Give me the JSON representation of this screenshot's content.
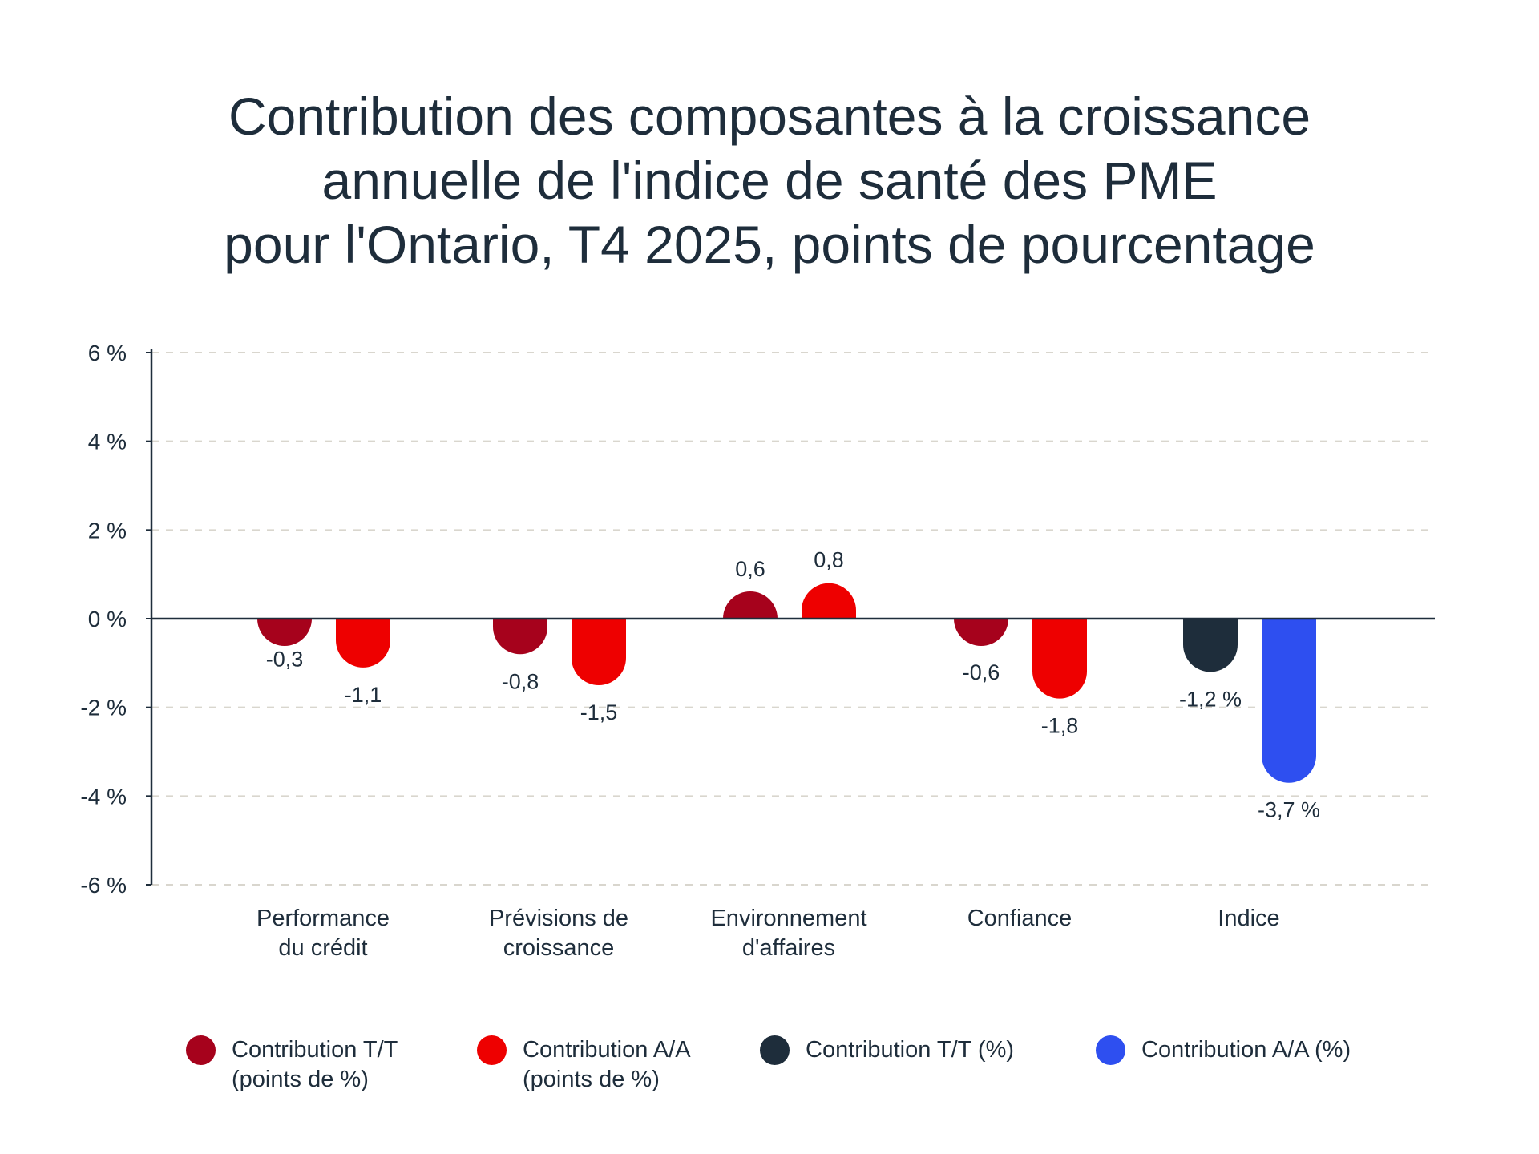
{
  "chart_data": {
    "type": "bar",
    "title_lines": [
      "Contribution des composantes à la croissance",
      "annuelle de l'indice de santé des PME",
      "pour l'Ontario, T4 2025, points de pourcentage"
    ],
    "y_ticks": [
      "6 %",
      "4 %",
      "2 %",
      "0 %",
      "-2 %",
      "-4 %",
      "-6 %"
    ],
    "y_tick_values": [
      6,
      4,
      2,
      0,
      -2,
      -4,
      -6
    ],
    "ylim": [
      -6,
      6
    ],
    "grid": "dashed horizontal",
    "legend_position": "bottom",
    "categories": [
      [
        "Performance",
        "du crédit"
      ],
      [
        "Prévisions de",
        "croissance"
      ],
      [
        "Environnement",
        "d'affaires"
      ],
      [
        "Confiance"
      ],
      [
        "Indice"
      ]
    ],
    "bars": [
      {
        "category": 0,
        "slot": 0,
        "value": -0.3,
        "label": "-0,3",
        "color": "#a6021c"
      },
      {
        "category": 0,
        "slot": 1,
        "value": -1.1,
        "label": "-1,1",
        "color": "#ee0000"
      },
      {
        "category": 1,
        "slot": 0,
        "value": -0.8,
        "label": "-0,8",
        "color": "#a6021c"
      },
      {
        "category": 1,
        "slot": 1,
        "value": -1.5,
        "label": "-1,5",
        "color": "#ee0000"
      },
      {
        "category": 2,
        "slot": 0,
        "value": 0.6,
        "label": "0,6",
        "color": "#a6021c"
      },
      {
        "category": 2,
        "slot": 1,
        "value": 0.8,
        "label": "0,8",
        "color": "#ee0000"
      },
      {
        "category": 3,
        "slot": 0,
        "value": -0.6,
        "label": "-0,6",
        "color": "#a6021c"
      },
      {
        "category": 3,
        "slot": 1,
        "value": -1.8,
        "label": "-1,8",
        "color": "#ee0000"
      },
      {
        "category": 4,
        "slot": 0,
        "value": -1.2,
        "label": "-1,2 %",
        "color": "#1e2d3b"
      },
      {
        "category": 4,
        "slot": 1,
        "value": -3.7,
        "label": "-3,7 %",
        "color": "#2e4ff0"
      }
    ],
    "legend": [
      {
        "label_lines": [
          "Contribution T/T",
          "(points de %)"
        ],
        "color": "#a6021c"
      },
      {
        "label_lines": [
          "Contribution A/A",
          "(points de %)"
        ],
        "color": "#ee0000"
      },
      {
        "label_lines": [
          "Contribution T/T (%)"
        ],
        "color": "#1e2d3b"
      },
      {
        "label_lines": [
          "Contribution A/A (%)"
        ],
        "color": "#2e4ff0"
      }
    ]
  }
}
